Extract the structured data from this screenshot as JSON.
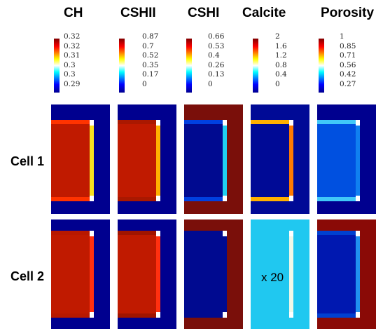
{
  "columns": [
    "CH",
    "CSHII",
    "CSHI",
    "Calcite",
    "Porosity"
  ],
  "rows": [
    "Cell 1",
    "Cell 2"
  ],
  "annotation": "x 20",
  "chart_data": {
    "type": "heatmap",
    "colormap": "jet",
    "colorbars": [
      {
        "variable": "CH",
        "ticks": [
          "0.32",
          "0.32",
          "0.31",
          "0.3",
          "0.3",
          "0.29"
        ]
      },
      {
        "variable": "CSHII",
        "ticks": [
          "0.87",
          "0.7",
          "0.52",
          "0.35",
          "0.17",
          "0"
        ]
      },
      {
        "variable": "CSHI",
        "ticks": [
          "0.66",
          "0.53",
          "0.4",
          "0.26",
          "0.13",
          "0"
        ]
      },
      {
        "variable": "Calcite",
        "ticks": [
          "2",
          "1.6",
          "1.2",
          "0.8",
          "0.4",
          "0"
        ]
      },
      {
        "variable": "Porosity",
        "ticks": [
          "1",
          "0.85",
          "0.71",
          "0.56",
          "0.42",
          "0.27"
        ]
      }
    ],
    "panels": [
      {
        "row": "Cell 1",
        "variable": "CH",
        "background": "#00008f",
        "block": "#c01a00",
        "cap": "#ff3300",
        "edge": "#f8e020",
        "corner": "#ffffff"
      },
      {
        "row": "Cell 1",
        "variable": "CSHII",
        "background": "#00008f",
        "block": "#c01a00",
        "cap": "#aa1800",
        "edge": "#ffb000",
        "corner": "#ffffff"
      },
      {
        "row": "Cell 1",
        "variable": "CSHI",
        "background": "#7a0f0a",
        "block": "#000a90",
        "cap": "#0040e0",
        "edge": "#20d0f0",
        "corner": "#ffffff"
      },
      {
        "row": "Cell 1",
        "variable": "Calcite",
        "background": "#000a96",
        "block": "#000a96",
        "cap": "#ffb000",
        "edge": "#ff7a00",
        "corner": "#ffffff"
      },
      {
        "row": "Cell 1",
        "variable": "Porosity",
        "background": "#00008f",
        "block": "#0050e0",
        "cap": "#40c8f8",
        "edge": "#1080f0",
        "corner": "#ffffff"
      },
      {
        "row": "Cell 2",
        "variable": "CH",
        "background": "#00008f",
        "block": "#c01a00",
        "cap": "#b81800",
        "edge": "#ff3010",
        "corner": "#ffffff"
      },
      {
        "row": "Cell 2",
        "variable": "CSHII",
        "background": "#00008f",
        "block": "#c01a00",
        "cap": "#a01400",
        "edge": "#ff3010",
        "corner": "#ffffff"
      },
      {
        "row": "Cell 2",
        "variable": "CSHI",
        "background": "#7a0f0a",
        "block": "#000a90",
        "cap": "#000a90",
        "edge": "#000a90",
        "corner": "#ffffff"
      },
      {
        "row": "Cell 2",
        "variable": "Calcite",
        "background": "#20c8f0",
        "block": "#20c8f0",
        "cap": "#20c8f0",
        "edge": "#f0f8e8",
        "corner": "#ffffff"
      },
      {
        "row": "Cell 2",
        "variable": "Porosity",
        "background": "#8a0a06",
        "block": "#0018b0",
        "cap": "#0040d0",
        "edge": "#2090f0",
        "corner": "#ffffff"
      }
    ]
  }
}
